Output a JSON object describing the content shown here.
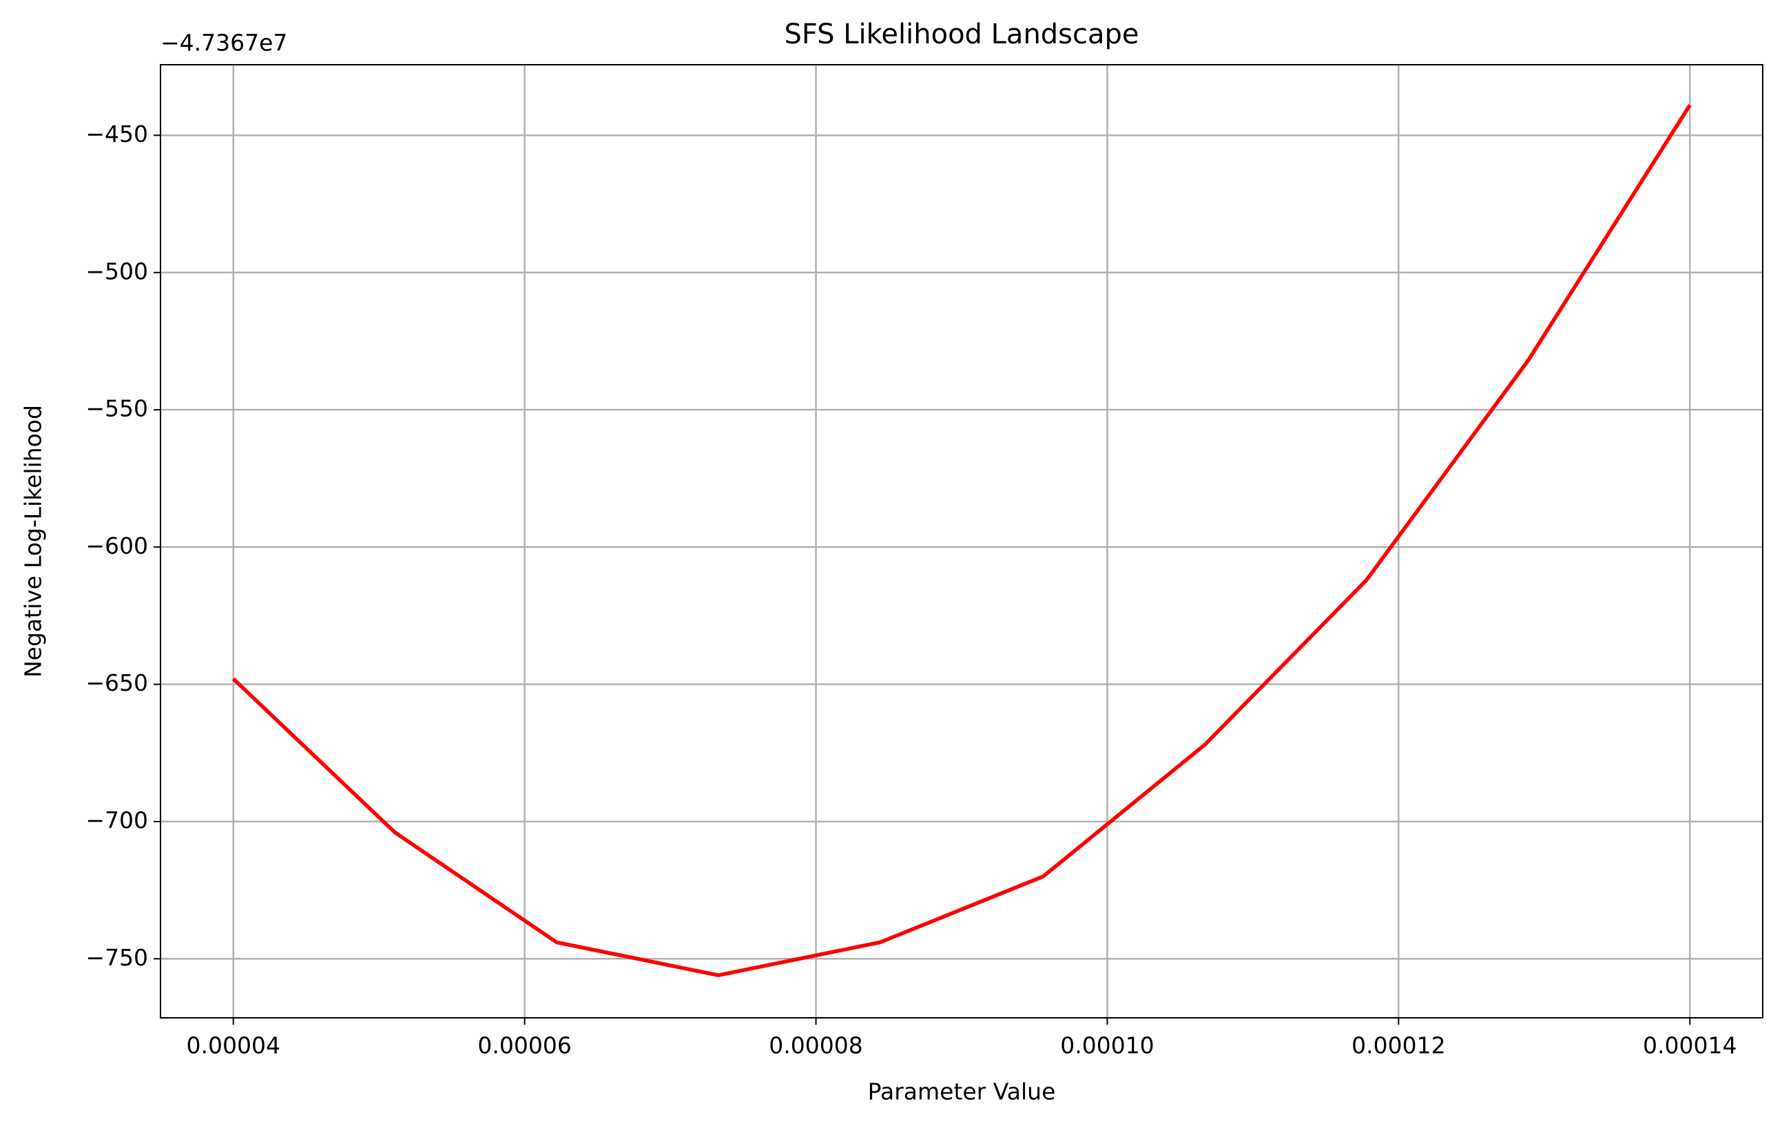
{
  "chart_data": {
    "type": "line",
    "title": "SFS Likelihood Landscape",
    "x_label": "Parameter Value",
    "y_label": "Negative Log-Likelihood",
    "offset_text": "−4.7367e7",
    "x": [
      4e-05,
      5.11e-05,
      6.22e-05,
      7.33e-05,
      8.44e-05,
      9.56e-05,
      0.0001067,
      0.0001178,
      0.0001289,
      0.00014
    ],
    "series": [
      {
        "name": "Negative Log-Likelihood",
        "color": "#ff0000",
        "values": [
          -648,
          -704,
          -744,
          -756,
          -744,
          -720,
          -672,
          -612,
          -532,
          -439
        ]
      }
    ],
    "xlim": [
      3.5e-05,
      0.000145
    ],
    "xticks": [
      4e-05,
      6e-05,
      8e-05,
      {
        "value": 0.0001,
        "label": "0.00010"
      },
      0.00012,
      0.00014
    ],
    "ylim": [
      -771.5,
      -424.3
    ],
    "yticks": [
      {
        "value": -750,
        "label": "−750"
      },
      {
        "value": -700,
        "label": "−700"
      },
      {
        "value": -650,
        "label": "−650"
      },
      {
        "value": -600,
        "label": "−600"
      },
      {
        "value": -550,
        "label": "−550"
      },
      {
        "value": -500,
        "label": "−500"
      },
      {
        "value": -450,
        "label": "−450"
      }
    ],
    "grid": true
  }
}
